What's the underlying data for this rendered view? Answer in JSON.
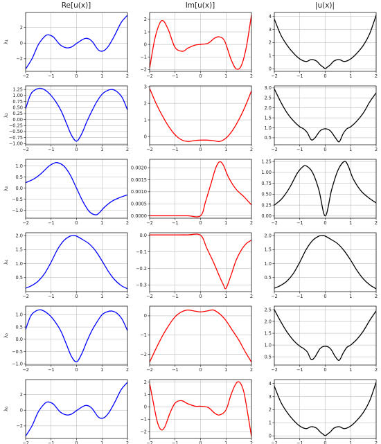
{
  "column_titles": [
    "Re[u(x)]",
    "Im[u(x)]",
    "|u(x)|"
  ],
  "row_labels": [
    "λ₁",
    "λ₂",
    "λ₃",
    "λ₄",
    "λ₅",
    "λ₆"
  ],
  "colors": {
    "real": "#0000ff",
    "imag": "#ff0000",
    "abs": "#000000",
    "grid": "#b0b0b0"
  },
  "chart_data": [
    {
      "type": "line",
      "row": "λ₁",
      "column": "Re[u(x)]",
      "grid": true,
      "xlim": [
        -2,
        2
      ],
      "ylim": [
        -3.6,
        3.9
      ],
      "xticks": [
        -2,
        -1,
        0,
        1,
        2
      ],
      "yticks": [
        -2,
        0,
        2
      ],
      "ytick_labels": [
        "−2",
        "0",
        "2"
      ],
      "x": [
        -2,
        -1.75,
        -1.5,
        -1.25,
        -1.1,
        -0.9,
        -0.65,
        -0.4,
        -0.2,
        0,
        0.35,
        0.6,
        0.85,
        1.05,
        1.25,
        1.5,
        1.75,
        2
      ],
      "y": [
        -3.3,
        -2.0,
        -0.2,
        0.85,
        1.05,
        0.75,
        -0.2,
        -0.6,
        -0.5,
        -0.05,
        0.6,
        0.25,
        -0.85,
        -1.0,
        -0.4,
        1.0,
        2.6,
        3.55
      ]
    },
    {
      "type": "line",
      "row": "λ₁",
      "column": "Im[u(x)]",
      "grid": true,
      "xlim": [
        -2,
        2
      ],
      "ylim": [
        -2.15,
        2.55
      ],
      "xticks": [
        -2,
        -1,
        0,
        1,
        2
      ],
      "yticks": [
        -2,
        -1,
        0,
        1,
        2
      ],
      "ytick_labels": [
        "−2",
        "−1",
        "0",
        "1",
        "2"
      ],
      "x": [
        -2,
        -1.8,
        -1.6,
        -1.45,
        -1.25,
        -1.0,
        -0.7,
        -0.5,
        -0.2,
        0,
        0.3,
        0.55,
        0.75,
        0.95,
        1.2,
        1.4,
        1.6,
        1.8,
        2
      ],
      "y": [
        -1.9,
        0.4,
        1.7,
        1.85,
        1.1,
        -0.25,
        -0.55,
        -0.3,
        -0.05,
        0.0,
        0.1,
        0.5,
        0.6,
        0.25,
        -1.2,
        -1.95,
        -1.7,
        -0.2,
        2.35
      ]
    },
    {
      "type": "line",
      "row": "λ₁",
      "column": "|u(x)|",
      "grid": true,
      "xlim": [
        -2,
        2
      ],
      "ylim": [
        -0.2,
        4.3
      ],
      "xticks": [
        -2,
        -1,
        0,
        1,
        2
      ],
      "yticks": [
        0,
        1,
        2,
        3,
        4
      ],
      "ytick_labels": [
        "0",
        "1",
        "2",
        "3",
        "4"
      ],
      "x": [
        -2,
        -1.75,
        -1.5,
        -1.25,
        -1.0,
        -0.75,
        -0.55,
        -0.35,
        -0.2,
        -0.1,
        0,
        0.1,
        0.2,
        0.35,
        0.55,
        0.75,
        1.0,
        1.25,
        1.5,
        1.75,
        2
      ],
      "y": [
        3.8,
        2.6,
        1.8,
        1.2,
        0.75,
        0.55,
        0.7,
        0.6,
        0.3,
        0.15,
        0.02,
        0.15,
        0.3,
        0.6,
        0.7,
        0.55,
        0.75,
        1.2,
        1.8,
        2.7,
        4.1
      ]
    },
    {
      "type": "line",
      "row": "λ₂",
      "column": "Re[u(x)]",
      "grid": true,
      "xlim": [
        -2,
        2
      ],
      "ylim": [
        -1.05,
        1.4
      ],
      "xticks": [
        -2,
        -1,
        0,
        1,
        2
      ],
      "yticks": [
        -1.0,
        -0.75,
        -0.5,
        -0.25,
        0.0,
        0.25,
        0.5,
        0.75,
        1.0,
        1.25
      ],
      "ytick_labels": [
        "−1.00",
        "−0.75",
        "−0.50",
        "−0.25",
        "0.00",
        "0.25",
        "0.50",
        "0.75",
        "1.00",
        "1.25"
      ],
      "x": [
        -2,
        -1.8,
        -1.6,
        -1.4,
        -1.2,
        -1.0,
        -0.8,
        -0.6,
        -0.4,
        -0.2,
        0,
        0.2,
        0.4,
        0.6,
        0.8,
        1.0,
        1.2,
        1.4,
        1.6,
        1.8,
        2
      ],
      "y": [
        0.45,
        1.05,
        1.25,
        1.3,
        1.2,
        1.0,
        0.72,
        0.35,
        -0.15,
        -0.65,
        -0.9,
        -0.6,
        -0.1,
        0.35,
        0.75,
        1.05,
        1.2,
        1.25,
        1.15,
        0.9,
        0.4
      ]
    },
    {
      "type": "line",
      "row": "λ₂",
      "column": "Im[u(x)]",
      "grid": true,
      "xlim": [
        -2,
        2
      ],
      "ylim": [
        -0.5,
        3.05
      ],
      "xticks": [
        -2,
        -1,
        0,
        1,
        2
      ],
      "yticks": [
        0,
        1,
        2,
        3
      ],
      "ytick_labels": [
        "0",
        "1",
        "2",
        "3"
      ],
      "x": [
        -2,
        -1.75,
        -1.5,
        -1.25,
        -1.0,
        -0.75,
        -0.5,
        -0.25,
        0,
        0.25,
        0.5,
        0.75,
        1.0,
        1.25,
        1.5,
        1.75,
        2
      ],
      "y": [
        2.9,
        2.0,
        1.25,
        0.6,
        0.1,
        -0.2,
        -0.3,
        -0.25,
        -0.22,
        -0.22,
        -0.25,
        -0.3,
        -0.1,
        0.35,
        1.0,
        1.8,
        2.75
      ]
    },
    {
      "type": "line",
      "row": "λ₂",
      "column": "|u(x)|",
      "grid": true,
      "xlim": [
        -2,
        2
      ],
      "ylim": [
        0.15,
        3.1
      ],
      "xticks": [
        -2,
        -1,
        0,
        1,
        2
      ],
      "yticks": [
        0.5,
        1.0,
        1.5,
        2.0,
        2.5,
        3.0
      ],
      "ytick_labels": [
        "0.5",
        "1.0",
        "1.5",
        "2.0",
        "2.5",
        "3.0"
      ],
      "x": [
        -2,
        -1.75,
        -1.5,
        -1.25,
        -1.0,
        -0.85,
        -0.7,
        -0.55,
        -0.4,
        -0.2,
        0,
        0.2,
        0.4,
        0.55,
        0.7,
        0.85,
        1.0,
        1.25,
        1.5,
        1.75,
        2
      ],
      "y": [
        2.95,
        2.3,
        1.75,
        1.35,
        1.05,
        0.95,
        0.75,
        0.4,
        0.5,
        0.85,
        0.95,
        0.85,
        0.5,
        0.3,
        0.7,
        0.95,
        1.05,
        1.35,
        1.75,
        2.3,
        2.75
      ]
    },
    {
      "type": "line",
      "row": "λ₃",
      "column": "Re[u(x)]",
      "grid": true,
      "xlim": [
        -2,
        2
      ],
      "ylim": [
        -1.35,
        1.3
      ],
      "xticks": [
        -2,
        -1,
        0,
        1,
        2
      ],
      "yticks": [
        -1.0,
        -0.5,
        0.0,
        0.5,
        1.0
      ],
      "ytick_labels": [
        "−1.0",
        "−0.5",
        "0.0",
        "0.5",
        "1.0"
      ],
      "x": [
        -2,
        -1.7,
        -1.4,
        -1.1,
        -0.9,
        -0.75,
        -0.5,
        -0.25,
        0,
        0.25,
        0.5,
        0.75,
        0.9,
        1.1,
        1.4,
        1.7,
        2
      ],
      "y": [
        0.25,
        0.4,
        0.65,
        0.98,
        1.12,
        1.15,
        1.0,
        0.6,
        0.0,
        -0.6,
        -1.05,
        -1.2,
        -1.1,
        -0.85,
        -0.58,
        -0.42,
        -0.3
      ]
    },
    {
      "type": "line",
      "row": "λ₃",
      "column": "Im[u(x)]",
      "grid": true,
      "xlim": [
        -2,
        2
      ],
      "ylim": [
        -0.0001,
        0.00235
      ],
      "xticks": [
        -2,
        -1,
        0,
        1,
        2
      ],
      "yticks": [
        0,
        0.0005,
        0.001,
        0.0015,
        0.002
      ],
      "ytick_labels": [
        "0.0000",
        "0.0005",
        "0.0010",
        "0.0015",
        "0.0020"
      ],
      "x": [
        -2,
        -1.5,
        -1.0,
        -0.5,
        0,
        0.2,
        0.4,
        0.6,
        0.75,
        0.9,
        1.1,
        1.4,
        1.7,
        2
      ],
      "y": [
        0,
        0,
        0,
        0,
        0,
        0.0006,
        0.0013,
        0.002,
        0.00225,
        0.0021,
        0.0016,
        0.0011,
        0.0008,
        0.00045
      ]
    },
    {
      "type": "line",
      "row": "λ₃",
      "column": "|u(x)|",
      "grid": true,
      "xlim": [
        -2,
        2
      ],
      "ylim": [
        -0.05,
        1.3
      ],
      "xticks": [
        -2,
        -1,
        0,
        1,
        2
      ],
      "yticks": [
        0.0,
        0.25,
        0.5,
        0.75,
        1.0,
        1.25
      ],
      "ytick_labels": [
        "0.00",
        "0.25",
        "0.50",
        "0.75",
        "1.00",
        "1.25"
      ],
      "x": [
        -2,
        -1.7,
        -1.4,
        -1.1,
        -0.9,
        -0.75,
        -0.5,
        -0.25,
        0,
        0.25,
        0.5,
        0.75,
        0.9,
        1.1,
        1.4,
        1.7,
        2
      ],
      "y": [
        0.25,
        0.4,
        0.65,
        0.98,
        1.12,
        1.15,
        1.0,
        0.6,
        0.0,
        0.6,
        1.05,
        1.25,
        1.15,
        0.85,
        0.58,
        0.42,
        0.3
      ]
    },
    {
      "type": "line",
      "row": "λ₄",
      "column": "Re[u(x)]",
      "grid": true,
      "xlim": [
        -2,
        2
      ],
      "ylim": [
        0.0,
        2.1
      ],
      "xticks": [
        -2,
        -1,
        0,
        1,
        2
      ],
      "yticks": [
        0.5,
        1.0,
        1.5,
        2.0
      ],
      "ytick_labels": [
        "0.5",
        "1.0",
        "1.5",
        "2.0"
      ],
      "x": [
        -2,
        -1.75,
        -1.5,
        -1.25,
        -1.0,
        -0.75,
        -0.5,
        -0.25,
        -0.1,
        0,
        0.25,
        0.5,
        0.75,
        1.0,
        1.25,
        1.5,
        1.75,
        2
      ],
      "y": [
        0.12,
        0.22,
        0.38,
        0.65,
        1.05,
        1.5,
        1.82,
        1.98,
        2.0,
        1.98,
        1.85,
        1.7,
        1.45,
        1.1,
        0.72,
        0.42,
        0.22,
        0.1
      ]
    },
    {
      "type": "line",
      "row": "λ₄",
      "column": "Im[u(x)]",
      "grid": true,
      "xlim": [
        -2,
        2
      ],
      "ylim": [
        -0.34,
        0.015
      ],
      "xticks": [
        -2,
        -1,
        0,
        1,
        2
      ],
      "yticks": [
        -0.3,
        -0.2,
        -0.1,
        0.0
      ],
      "ytick_labels": [
        "−0.3",
        "−0.2",
        "−0.1",
        "0.0"
      ],
      "x": [
        -2,
        -1.5,
        -1.0,
        -0.5,
        0,
        0.25,
        0.5,
        0.75,
        0.9,
        1.0,
        1.2,
        1.4,
        1.6,
        1.8,
        2
      ],
      "y": [
        0.002,
        0.002,
        0.002,
        0.002,
        0.0,
        -0.08,
        -0.16,
        -0.25,
        -0.3,
        -0.32,
        -0.24,
        -0.15,
        -0.09,
        -0.05,
        -0.03
      ]
    },
    {
      "type": "line",
      "row": "λ₄",
      "column": "|u(x)|",
      "grid": true,
      "xlim": [
        -2,
        2
      ],
      "ylim": [
        0.0,
        2.1
      ],
      "xticks": [
        -2,
        -1,
        0,
        1,
        2
      ],
      "yticks": [
        0.5,
        1.0,
        1.5,
        2.0
      ],
      "ytick_labels": [
        "0.5",
        "1.0",
        "1.5",
        "2.0"
      ],
      "x": [
        -2,
        -1.75,
        -1.5,
        -1.25,
        -1.0,
        -0.75,
        -0.5,
        -0.25,
        -0.1,
        0,
        0.25,
        0.5,
        0.75,
        1.0,
        1.25,
        1.5,
        1.75,
        2
      ],
      "y": [
        0.12,
        0.22,
        0.38,
        0.65,
        1.05,
        1.5,
        1.82,
        1.98,
        2.0,
        1.98,
        1.85,
        1.7,
        1.45,
        1.12,
        0.75,
        0.45,
        0.24,
        0.1
      ]
    },
    {
      "type": "line",
      "row": "λ₅",
      "column": "Re[u(x)]",
      "grid": true,
      "xlim": [
        -2,
        2
      ],
      "ylim": [
        -1.05,
        1.35
      ],
      "xticks": [
        -2,
        -1,
        0,
        1,
        2
      ],
      "yticks": [
        -1.0,
        -0.5,
        0.0,
        0.5,
        1.0
      ],
      "ytick_labels": [
        "−1.0",
        "−0.5",
        "0.0",
        "0.5",
        "1.0"
      ],
      "x": [
        -2,
        -1.8,
        -1.6,
        -1.4,
        -1.2,
        -1.0,
        -0.8,
        -0.6,
        -0.4,
        -0.2,
        0,
        0.2,
        0.4,
        0.6,
        0.8,
        1.0,
        1.2,
        1.4,
        1.6,
        1.8,
        2
      ],
      "y": [
        0.4,
        0.95,
        1.15,
        1.2,
        1.1,
        0.92,
        0.65,
        0.3,
        -0.2,
        -0.7,
        -0.92,
        -0.6,
        -0.1,
        0.35,
        0.7,
        1.0,
        1.12,
        1.15,
        1.05,
        0.8,
        0.35
      ]
    },
    {
      "type": "line",
      "row": "λ₅",
      "column": "Im[u(x)]",
      "grid": true,
      "xlim": [
        -2,
        2
      ],
      "ylim": [
        -2.55,
        0.5
      ],
      "xticks": [
        -2,
        -1,
        0,
        1,
        2
      ],
      "yticks": [
        -2,
        -1,
        0
      ],
      "ytick_labels": [
        "−2",
        "−1",
        "0"
      ],
      "x": [
        -2,
        -1.75,
        -1.5,
        -1.25,
        -1.0,
        -0.75,
        -0.5,
        -0.25,
        0,
        0.25,
        0.5,
        0.75,
        1.0,
        1.25,
        1.5,
        1.75,
        2
      ],
      "y": [
        -2.4,
        -1.7,
        -1.05,
        -0.5,
        -0.05,
        0.2,
        0.3,
        0.25,
        0.2,
        0.25,
        0.3,
        0.1,
        -0.25,
        -0.75,
        -1.25,
        -1.85,
        -2.4
      ]
    },
    {
      "type": "line",
      "row": "λ₅",
      "column": "|u(x)|",
      "grid": true,
      "xlim": [
        -2,
        2
      ],
      "ylim": [
        0.15,
        2.65
      ],
      "xticks": [
        -2,
        -1,
        0,
        1,
        2
      ],
      "yticks": [
        0.5,
        1.0,
        1.5,
        2.0,
        2.5
      ],
      "ytick_labels": [
        "0.5",
        "1.0",
        "1.5",
        "2.0",
        "2.5"
      ],
      "x": [
        -2,
        -1.75,
        -1.5,
        -1.25,
        -1.0,
        -0.85,
        -0.7,
        -0.55,
        -0.4,
        -0.2,
        0,
        0.2,
        0.4,
        0.55,
        0.7,
        0.85,
        1.0,
        1.25,
        1.5,
        1.75,
        2
      ],
      "y": [
        2.5,
        2.0,
        1.55,
        1.2,
        0.95,
        0.85,
        0.7,
        0.38,
        0.5,
        0.85,
        0.95,
        0.85,
        0.5,
        0.35,
        0.65,
        0.9,
        1.0,
        1.25,
        1.6,
        2.05,
        2.45
      ]
    },
    {
      "type": "line",
      "row": "λ₆",
      "column": "Re[u(x)]",
      "grid": true,
      "xlim": [
        -2,
        2
      ],
      "ylim": [
        -3.6,
        3.9
      ],
      "xticks": [
        -2,
        -1,
        0,
        1,
        2
      ],
      "yticks": [
        -2,
        0,
        2
      ],
      "ytick_labels": [
        "−2",
        "0",
        "2"
      ],
      "x": [
        -2,
        -1.75,
        -1.5,
        -1.25,
        -1.1,
        -0.9,
        -0.65,
        -0.4,
        -0.2,
        0,
        0.35,
        0.6,
        0.85,
        1.05,
        1.25,
        1.5,
        1.75,
        2
      ],
      "y": [
        -3.3,
        -2.0,
        -0.2,
        0.85,
        1.05,
        0.75,
        -0.2,
        -0.6,
        -0.5,
        -0.05,
        0.6,
        0.25,
        -0.85,
        -1.0,
        -0.4,
        1.0,
        2.6,
        3.55
      ]
    },
    {
      "type": "line",
      "row": "λ₆",
      "column": "Im[u(x)]",
      "grid": true,
      "xlim": [
        -2,
        2
      ],
      "ylim": [
        -2.55,
        2.2
      ],
      "xticks": [
        -2,
        -1,
        0,
        1,
        2
      ],
      "yticks": [
        -2,
        -1,
        0,
        1,
        2
      ],
      "ytick_labels": [
        "−2",
        "−1",
        "0",
        "1",
        "2"
      ],
      "x": [
        -2,
        -1.85,
        -1.7,
        -1.55,
        -1.4,
        -1.2,
        -1.0,
        -0.75,
        -0.5,
        -0.2,
        0,
        0.3,
        0.55,
        0.75,
        1.0,
        1.2,
        1.4,
        1.55,
        1.7,
        1.85,
        2
      ],
      "y": [
        1.9,
        0.3,
        -1.2,
        -1.85,
        -1.6,
        -0.5,
        0.3,
        0.5,
        0.25,
        0.05,
        0.05,
        -0.05,
        -0.5,
        -0.65,
        -0.25,
        1.0,
        1.9,
        1.95,
        1.2,
        -0.5,
        -2.4
      ]
    },
    {
      "type": "line",
      "row": "λ₆",
      "column": "|u(x)|",
      "grid": true,
      "xlim": [
        -2,
        2
      ],
      "ylim": [
        -0.2,
        4.3
      ],
      "xticks": [
        -2,
        -1,
        0,
        1,
        2
      ],
      "yticks": [
        0,
        1,
        2,
        3,
        4
      ],
      "ytick_labels": [
        "0",
        "1",
        "2",
        "3",
        "4"
      ],
      "x": [
        -2,
        -1.75,
        -1.5,
        -1.25,
        -1.0,
        -0.75,
        -0.55,
        -0.35,
        -0.2,
        -0.1,
        0,
        0.1,
        0.2,
        0.35,
        0.55,
        0.75,
        1.0,
        1.25,
        1.5,
        1.75,
        2
      ],
      "y": [
        3.8,
        2.6,
        1.8,
        1.2,
        0.75,
        0.55,
        0.7,
        0.6,
        0.3,
        0.15,
        0.02,
        0.15,
        0.3,
        0.6,
        0.7,
        0.55,
        0.75,
        1.2,
        1.8,
        2.7,
        4.1
      ]
    }
  ]
}
